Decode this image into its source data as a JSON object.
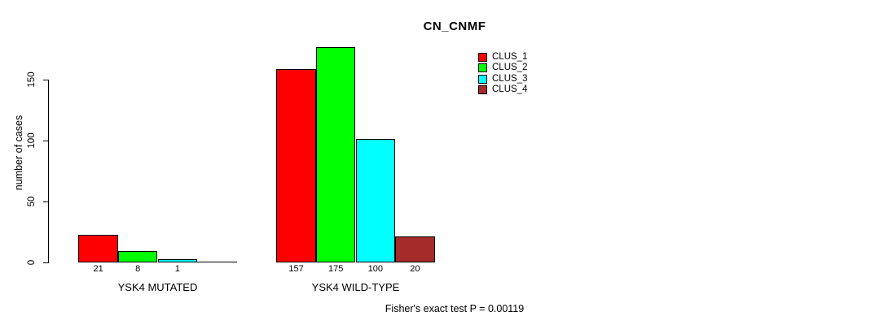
{
  "chart_data": {
    "type": "bar",
    "title": "CN_CNMF",
    "xlabel": "",
    "ylabel": "number of cases",
    "ylim": [
      0,
      175
    ],
    "yticks": [
      0,
      50,
      100,
      150
    ],
    "grid": false,
    "background_color": "#FFFFFF",
    "bar_border_color": "#000000",
    "legend_position": "top-right",
    "categories": [
      "YSK4 MUTATED",
      "YSK4 WILD-TYPE"
    ],
    "series": [
      {
        "name": "CLUS_1",
        "color": "#FF0000",
        "values": [
          21,
          157
        ]
      },
      {
        "name": "CLUS_2",
        "color": "#00FF00",
        "values": [
          8,
          175
        ]
      },
      {
        "name": "CLUS_3",
        "color": "#00FFFF",
        "values": [
          1,
          100
        ]
      },
      {
        "name": "CLUS_4",
        "color": "#A52A2A",
        "values": [
          0,
          20
        ]
      }
    ],
    "bar_value_labels_rule": "value shown under each bar; zero-height bars unlabeled",
    "annotation": "Fisher's exact test P = 0.00119"
  }
}
